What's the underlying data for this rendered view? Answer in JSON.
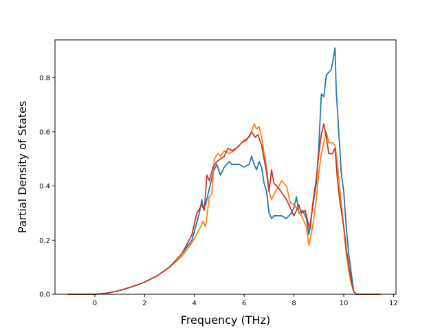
{
  "chart_data": {
    "type": "line",
    "title": "",
    "xlabel": "Frequency (THz)",
    "ylabel": "Partial Density of States",
    "xlim": [
      -1.6,
      12.1
    ],
    "ylim": [
      0.0,
      0.94
    ],
    "xticks": [
      0,
      2,
      4,
      6,
      8,
      10,
      12
    ],
    "yticks": [
      0.0,
      0.2,
      0.4,
      0.6,
      0.8
    ],
    "xtick_labels": [
      "0",
      "2",
      "4",
      "6",
      "8",
      "10",
      "12"
    ],
    "ytick_labels": [
      "0.0",
      "0.2",
      "0.4",
      "0.6",
      "0.8"
    ],
    "grid": false,
    "legend": "none",
    "series": [
      {
        "color": "#1f77b4",
        "points": [
          [
            -1.1,
            0
          ],
          [
            0,
            0
          ],
          [
            0.5,
            0.004
          ],
          [
            1,
            0.014
          ],
          [
            1.5,
            0.028
          ],
          [
            2,
            0.045
          ],
          [
            2.5,
            0.068
          ],
          [
            3,
            0.1
          ],
          [
            3.5,
            0.15
          ],
          [
            3.9,
            0.2
          ],
          [
            4.2,
            0.3
          ],
          [
            4.3,
            0.35
          ],
          [
            4.35,
            0.32
          ],
          [
            4.45,
            0.33
          ],
          [
            4.6,
            0.39
          ],
          [
            4.75,
            0.45
          ],
          [
            4.9,
            0.48
          ],
          [
            5.05,
            0.44
          ],
          [
            5.2,
            0.47
          ],
          [
            5.4,
            0.49
          ],
          [
            5.5,
            0.48
          ],
          [
            5.8,
            0.48
          ],
          [
            6.0,
            0.47
          ],
          [
            6.2,
            0.48
          ],
          [
            6.3,
            0.51
          ],
          [
            6.4,
            0.48
          ],
          [
            6.5,
            0.46
          ],
          [
            6.6,
            0.49
          ],
          [
            6.7,
            0.47
          ],
          [
            6.8,
            0.41
          ],
          [
            6.9,
            0.38
          ],
          [
            7.0,
            0.3
          ],
          [
            7.1,
            0.28
          ],
          [
            7.2,
            0.29
          ],
          [
            7.5,
            0.29
          ],
          [
            7.7,
            0.28
          ],
          [
            7.8,
            0.29
          ],
          [
            7.9,
            0.3
          ],
          [
            8.0,
            0.32
          ],
          [
            8.1,
            0.36
          ],
          [
            8.2,
            0.3
          ],
          [
            8.35,
            0.31
          ],
          [
            8.5,
            0.28
          ],
          [
            8.6,
            0.22
          ],
          [
            8.7,
            0.29
          ],
          [
            8.9,
            0.41
          ],
          [
            9.0,
            0.55
          ],
          [
            9.1,
            0.74
          ],
          [
            9.2,
            0.73
          ],
          [
            9.3,
            0.81
          ],
          [
            9.4,
            0.82
          ],
          [
            9.5,
            0.83
          ],
          [
            9.6,
            0.88
          ],
          [
            9.65,
            0.91
          ],
          [
            9.7,
            0.75
          ],
          [
            9.8,
            0.6
          ],
          [
            9.9,
            0.45
          ],
          [
            10.0,
            0.38
          ],
          [
            10.1,
            0.25
          ],
          [
            10.2,
            0.15
          ],
          [
            10.3,
            0.08
          ],
          [
            10.4,
            0.01
          ],
          [
            10.5,
            0
          ],
          [
            11.5,
            0
          ]
        ]
      },
      {
        "color": "#ff7f0e",
        "points": [
          [
            -1.1,
            0
          ],
          [
            0,
            0
          ],
          [
            0.5,
            0.004
          ],
          [
            1,
            0.014
          ],
          [
            1.5,
            0.028
          ],
          [
            2,
            0.045
          ],
          [
            2.5,
            0.068
          ],
          [
            3,
            0.1
          ],
          [
            3.5,
            0.14
          ],
          [
            3.9,
            0.19
          ],
          [
            4.2,
            0.24
          ],
          [
            4.35,
            0.27
          ],
          [
            4.45,
            0.25
          ],
          [
            4.6,
            0.36
          ],
          [
            4.7,
            0.37
          ],
          [
            4.8,
            0.5
          ],
          [
            4.95,
            0.52
          ],
          [
            5.05,
            0.51
          ],
          [
            5.2,
            0.53
          ],
          [
            5.4,
            0.52
          ],
          [
            5.6,
            0.53
          ],
          [
            5.8,
            0.55
          ],
          [
            6.0,
            0.57
          ],
          [
            6.2,
            0.58
          ],
          [
            6.3,
            0.6
          ],
          [
            6.4,
            0.63
          ],
          [
            6.5,
            0.61
          ],
          [
            6.6,
            0.62
          ],
          [
            6.7,
            0.58
          ],
          [
            6.8,
            0.52
          ],
          [
            6.9,
            0.47
          ],
          [
            7.0,
            0.38
          ],
          [
            7.1,
            0.35
          ],
          [
            7.2,
            0.37
          ],
          [
            7.4,
            0.4
          ],
          [
            7.5,
            0.42
          ],
          [
            7.7,
            0.4
          ],
          [
            7.85,
            0.34
          ],
          [
            8.0,
            0.33
          ],
          [
            8.1,
            0.32
          ],
          [
            8.3,
            0.29
          ],
          [
            8.5,
            0.25
          ],
          [
            8.6,
            0.18
          ],
          [
            8.75,
            0.25
          ],
          [
            8.9,
            0.35
          ],
          [
            9.0,
            0.45
          ],
          [
            9.1,
            0.52
          ],
          [
            9.2,
            0.56
          ],
          [
            9.3,
            0.6
          ],
          [
            9.4,
            0.56
          ],
          [
            9.55,
            0.56
          ],
          [
            9.65,
            0.55
          ],
          [
            9.75,
            0.48
          ],
          [
            9.85,
            0.38
          ],
          [
            10.0,
            0.25
          ],
          [
            10.1,
            0.15
          ],
          [
            10.2,
            0.09
          ],
          [
            10.3,
            0.04
          ],
          [
            10.4,
            0.01
          ],
          [
            10.5,
            0
          ],
          [
            11.5,
            0
          ]
        ]
      },
      {
        "color": "#c0392b",
        "points": [
          [
            -1.1,
            0
          ],
          [
            0,
            0
          ],
          [
            0.5,
            0.004
          ],
          [
            1,
            0.014
          ],
          [
            1.5,
            0.028
          ],
          [
            2,
            0.045
          ],
          [
            2.5,
            0.068
          ],
          [
            3,
            0.1
          ],
          [
            3.5,
            0.15
          ],
          [
            3.9,
            0.22
          ],
          [
            4.1,
            0.3
          ],
          [
            4.3,
            0.33
          ],
          [
            4.4,
            0.31
          ],
          [
            4.5,
            0.44
          ],
          [
            4.6,
            0.42
          ],
          [
            4.75,
            0.47
          ],
          [
            4.9,
            0.49
          ],
          [
            5.05,
            0.5
          ],
          [
            5.2,
            0.51
          ],
          [
            5.35,
            0.54
          ],
          [
            5.5,
            0.53
          ],
          [
            5.7,
            0.54
          ],
          [
            5.9,
            0.56
          ],
          [
            6.1,
            0.57
          ],
          [
            6.3,
            0.6
          ],
          [
            6.45,
            0.58
          ],
          [
            6.55,
            0.59
          ],
          [
            6.7,
            0.55
          ],
          [
            6.8,
            0.5
          ],
          [
            6.9,
            0.45
          ],
          [
            7.0,
            0.38
          ],
          [
            7.1,
            0.46
          ],
          [
            7.2,
            0.41
          ],
          [
            7.4,
            0.39
          ],
          [
            7.55,
            0.37
          ],
          [
            7.7,
            0.35
          ],
          [
            7.8,
            0.33
          ],
          [
            7.9,
            0.31
          ],
          [
            8.0,
            0.29
          ],
          [
            8.1,
            0.31
          ],
          [
            8.2,
            0.33
          ],
          [
            8.3,
            0.3
          ],
          [
            8.45,
            0.31
          ],
          [
            8.55,
            0.27
          ],
          [
            8.65,
            0.24
          ],
          [
            8.75,
            0.33
          ],
          [
            8.9,
            0.43
          ],
          [
            9.0,
            0.52
          ],
          [
            9.1,
            0.59
          ],
          [
            9.2,
            0.63
          ],
          [
            9.3,
            0.58
          ],
          [
            9.4,
            0.52
          ],
          [
            9.55,
            0.52
          ],
          [
            9.65,
            0.54
          ],
          [
            9.75,
            0.42
          ],
          [
            9.85,
            0.34
          ],
          [
            10.0,
            0.25
          ],
          [
            10.1,
            0.17
          ],
          [
            10.2,
            0.11
          ],
          [
            10.3,
            0.05
          ],
          [
            10.4,
            0.01
          ],
          [
            10.5,
            0
          ],
          [
            11.5,
            0
          ]
        ]
      }
    ]
  }
}
